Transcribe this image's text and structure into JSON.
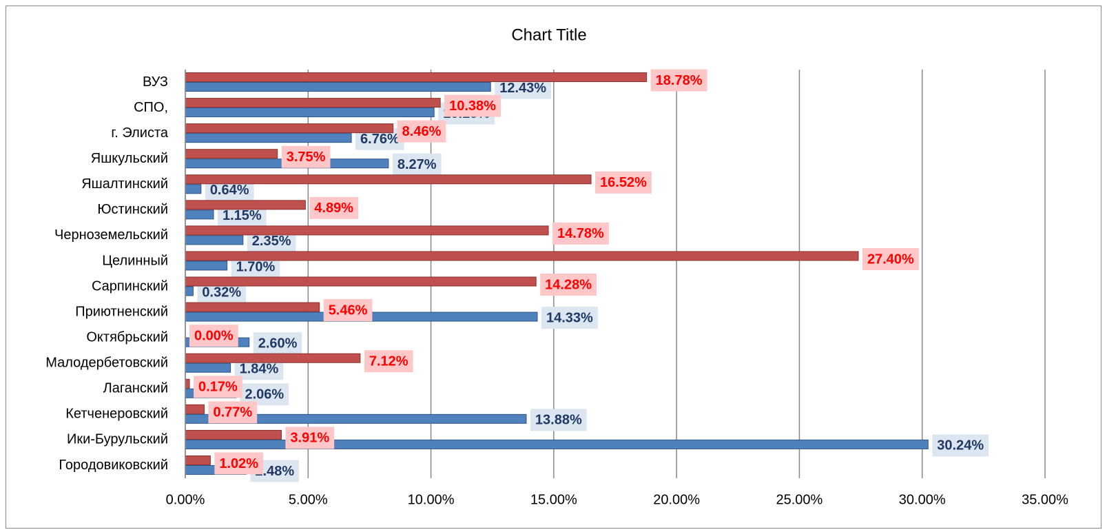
{
  "chart_data": {
    "type": "bar",
    "orientation": "horizontal",
    "title": "Chart Title",
    "categories": [
      "ВУЗ",
      "СПО,",
      "г. Элиста",
      "Яшкульский",
      "Яшалтинский",
      "Юстинский",
      "Черноземельский",
      "Целинный",
      "Сарпинский",
      "Приютненский",
      "Октябрьский",
      "Малодербетовский",
      "Лаганский",
      "Кетченеровский",
      "Ики-Бурульский",
      "Городовиковский"
    ],
    "series": [
      {
        "color": "#c0504d",
        "label_color": "#ff0000",
        "label_background": "#ffc7c7",
        "values": [
          18.78,
          10.38,
          8.46,
          3.75,
          16.52,
          4.89,
          14.78,
          27.4,
          14.28,
          5.46,
          0.0,
          7.12,
          0.17,
          0.77,
          3.91,
          1.02
        ],
        "value_labels": [
          "18.78%",
          "10.38%",
          "8.46%",
          "3.75%",
          "16.52%",
          "4.89%",
          "14.78%",
          "27.40%",
          "14.28%",
          "5.46%",
          "0.00%",
          "7.12%",
          "0.17%",
          "0.77%",
          "3.91%",
          "1.02%"
        ]
      },
      {
        "color": "#4f81bd",
        "label_color": "#1f3864",
        "label_background": "#dce6f1",
        "values": [
          12.43,
          10.13,
          6.76,
          8.27,
          0.64,
          1.15,
          2.35,
          1.7,
          0.32,
          14.33,
          2.6,
          1.84,
          2.06,
          13.88,
          30.24,
          2.48
        ],
        "value_labels": [
          "12.43%",
          "10.13%",
          "6.76%",
          "8.27%",
          "0.64%",
          "1.15%",
          "2.35%",
          "1.70%",
          "0.32%",
          "14.33%",
          "2.60%",
          "1.84%",
          "2.06%",
          "13.88%",
          "30.24%",
          "2.48%"
        ]
      }
    ],
    "xlim": [
      0,
      35
    ],
    "xticks": [
      {
        "value": 0,
        "label": "0.00%"
      },
      {
        "value": 5,
        "label": "5.00%"
      },
      {
        "value": 10,
        "label": "10.00%"
      },
      {
        "value": 15,
        "label": "15.00%"
      },
      {
        "value": 20,
        "label": "20.00%"
      },
      {
        "value": 25,
        "label": "25.00%"
      },
      {
        "value": 30,
        "label": "30.00%"
      },
      {
        "value": 35,
        "label": "35.00%"
      }
    ],
    "grid": true
  }
}
